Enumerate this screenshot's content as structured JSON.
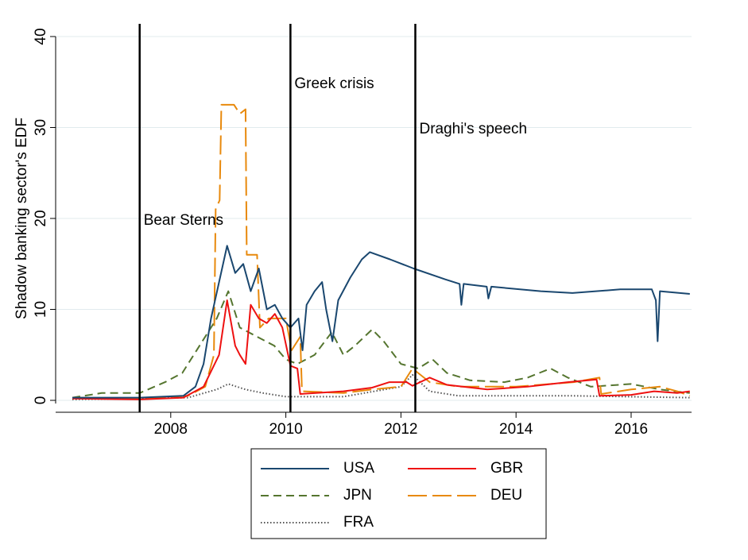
{
  "chart_data": {
    "type": "line",
    "y_label": "Shadow banking sector's EDF",
    "xlim": [
      2006.0,
      2017.05
    ],
    "xticks": [
      2008,
      2010,
      2012,
      2014,
      2016
    ],
    "ylim": [
      0,
      40
    ],
    "yticks": [
      0,
      10,
      20,
      30,
      40
    ],
    "grid": true,
    "events": [
      {
        "x": 2007.46,
        "label": "Bear Sterns"
      },
      {
        "x": 2010.08,
        "label": "Greek crisis"
      },
      {
        "x": 2012.25,
        "label": "Draghi's speech"
      }
    ],
    "series": [
      {
        "name": "USA",
        "color": "#1a476f",
        "line_style": "solid",
        "x": [
          2006.29,
          2007.46,
          2008.22,
          2008.43,
          2008.57,
          2008.7,
          2008.84,
          2008.98,
          2009.12,
          2009.26,
          2009.39,
          2009.53,
          2009.67,
          2009.81,
          2009.94,
          2010.08,
          2010.22,
          2010.29,
          2010.36,
          2010.5,
          2010.63,
          2010.7,
          2010.81,
          2010.91,
          2011.12,
          2011.32,
          2011.46,
          2011.81,
          2012.22,
          2012.77,
          2013.02,
          2013.05,
          2013.09,
          2013.49,
          2013.52,
          2013.57,
          2014.43,
          2014.98,
          2015.81,
          2016.36,
          2016.43,
          2016.46,
          2016.5,
          2017.02
        ],
        "values": [
          0.3,
          0.3,
          0.5,
          1.5,
          4,
          9,
          13,
          17,
          14,
          15,
          12,
          14.5,
          10,
          10.5,
          9,
          8,
          9,
          5.5,
          10.5,
          12,
          13,
          10,
          6.5,
          11,
          13.5,
          15.5,
          16.3,
          15.5,
          14.5,
          13.3,
          12.8,
          10.5,
          12.8,
          12.5,
          11.2,
          12.5,
          12,
          11.8,
          12.2,
          12.2,
          11,
          6.5,
          12,
          11.7
        ]
      },
      {
        "name": "GBR",
        "color": "#ee1111",
        "line_style": "solid",
        "x": [
          2006.29,
          2007.46,
          2008.22,
          2008.57,
          2008.84,
          2008.98,
          2009.12,
          2009.2,
          2009.3,
          2009.39,
          2009.53,
          2009.67,
          2009.81,
          2009.94,
          2010.08,
          2010.2,
          2010.25,
          2011.0,
          2011.5,
          2011.8,
          2012.1,
          2012.2,
          2012.5,
          2012.8,
          2013.5,
          2014.2,
          2014.9,
          2015.4,
          2015.45,
          2016.0,
          2016.4,
          2016.8,
          2017.02
        ],
        "values": [
          0.2,
          0.1,
          0.3,
          1.5,
          5,
          11,
          6,
          5,
          4,
          10.5,
          9,
          8.5,
          9.5,
          8,
          3.8,
          3.5,
          0.7,
          1,
          1.4,
          2,
          2,
          1.6,
          2.5,
          1.7,
          1.2,
          1.5,
          2,
          2.3,
          0.5,
          0.6,
          1,
          0.8,
          1
        ]
      },
      {
        "name": "JPN",
        "color": "#55752f",
        "line_style": "dashed",
        "x": [
          2006.29,
          2006.8,
          2007.46,
          2007.9,
          2008.2,
          2008.5,
          2008.8,
          2009.0,
          2009.2,
          2009.5,
          2009.8,
          2010.0,
          2010.2,
          2010.5,
          2010.8,
          2011.0,
          2011.2,
          2011.5,
          2011.7,
          2012.0,
          2012.3,
          2012.55,
          2012.8,
          2013.2,
          2013.8,
          2014.2,
          2014.6,
          2014.9,
          2015.3,
          2016.0,
          2016.5,
          2017.02
        ],
        "values": [
          0.3,
          0.8,
          0.8,
          2,
          3,
          6,
          9,
          12,
          8,
          7,
          6,
          4.5,
          4,
          5,
          7.5,
          5,
          6,
          7.8,
          6.5,
          4,
          3.5,
          4.5,
          3,
          2.2,
          2,
          2.5,
          3.5,
          2.5,
          1.5,
          1.8,
          1.2,
          0.8
        ]
      },
      {
        "name": "DEU",
        "color": "#e8890c",
        "line_style": "longdash",
        "x": [
          2006.29,
          2007.46,
          2008.3,
          2008.6,
          2008.75,
          2008.78,
          2008.85,
          2008.88,
          2009.1,
          2009.2,
          2009.3,
          2009.32,
          2009.5,
          2009.55,
          2009.7,
          2010.0,
          2010.1,
          2010.25,
          2010.28,
          2011.0,
          2011.5,
          2012.0,
          2012.2,
          2012.3,
          2012.5,
          2013.0,
          2014.0,
          2015.0,
          2015.45,
          2015.48,
          2016.0,
          2016.5,
          2016.8,
          2017.02
        ],
        "values": [
          0.3,
          0.2,
          0.5,
          1.5,
          5,
          21,
          22,
          32.5,
          32.5,
          31.5,
          32,
          16,
          16,
          8,
          9,
          9,
          5.5,
          7,
          1,
          0.8,
          1.2,
          1.5,
          3.5,
          3,
          2,
          1.5,
          1.5,
          2,
          2.5,
          0.7,
          1.2,
          1.5,
          1,
          0.5
        ]
      },
      {
        "name": "FRA",
        "color": "#555555",
        "line_style": "dotted",
        "x": [
          2006.29,
          2008.3,
          2008.8,
          2009.0,
          2009.3,
          2009.6,
          2010.0,
          2011.0,
          2012.0,
          2012.2,
          2012.5,
          2013.0,
          2015.0,
          2017.02
        ],
        "values": [
          0.1,
          0.3,
          1.2,
          1.8,
          1.2,
          0.8,
          0.4,
          0.4,
          1.5,
          2.8,
          1,
          0.5,
          0.5,
          0.3
        ]
      }
    ]
  }
}
